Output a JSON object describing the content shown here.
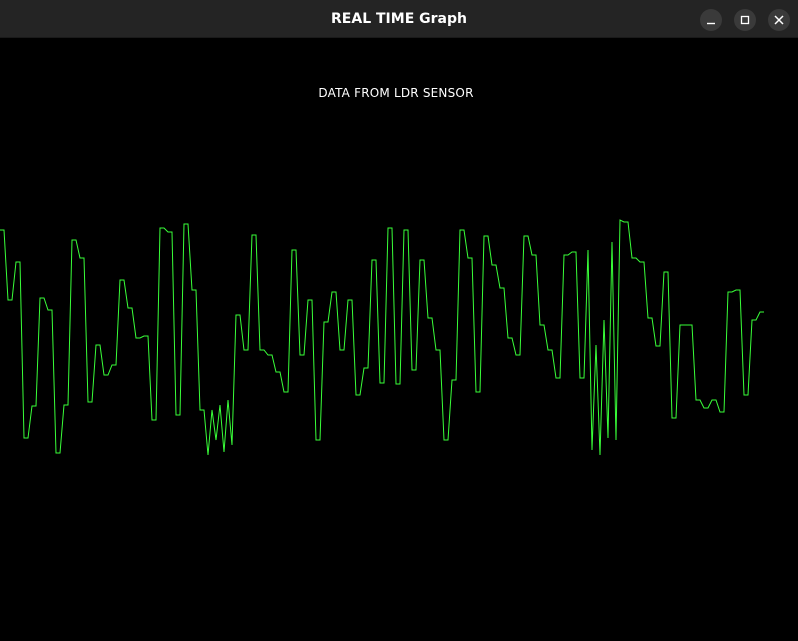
{
  "window": {
    "title": "REAL TIME Graph",
    "buttons": {
      "minimize_icon": "minimize-icon",
      "maximize_icon": "maximize-icon",
      "close_icon": "close-icon"
    }
  },
  "canvas": {
    "label": "DATA FROM LDR SENSOR",
    "background": "#000000",
    "trace_color": "#39ff39"
  },
  "chart_data": {
    "type": "line",
    "grid": false,
    "series": [
      {
        "values": [
          230,
          230,
          300,
          300,
          262,
          262,
          438,
          438,
          406,
          406,
          298,
          298,
          310,
          310,
          453,
          453,
          405,
          405,
          240,
          240,
          258,
          258,
          402,
          402,
          345,
          345,
          375,
          375,
          365,
          365,
          280,
          280,
          308,
          308,
          338,
          338,
          336,
          336,
          420,
          420,
          228,
          228,
          232,
          232,
          415,
          415,
          224,
          224,
          290,
          290,
          410,
          410,
          455,
          410,
          440,
          405,
          452,
          400,
          445,
          315,
          315,
          350,
          350,
          235,
          235,
          350,
          350,
          355,
          355,
          372,
          372,
          392,
          392,
          250,
          250,
          355,
          355,
          300,
          300,
          440,
          440,
          322,
          322,
          292,
          292,
          350,
          350,
          300,
          300,
          395,
          395,
          368,
          368,
          260,
          260,
          383,
          383,
          228,
          228,
          384,
          384,
          230,
          230,
          370,
          370,
          260,
          260,
          318,
          318,
          350,
          350,
          440,
          440,
          380,
          380,
          230,
          230,
          258,
          258,
          392,
          392,
          236,
          236,
          265,
          265,
          288,
          288,
          338,
          338,
          355,
          355,
          236,
          236,
          255,
          255,
          325,
          325,
          350,
          350,
          378,
          378,
          255,
          255,
          252,
          252,
          378,
          378,
          250,
          450,
          345,
          455,
          320,
          438,
          242,
          440,
          220,
          222,
          222,
          258,
          258,
          262,
          262,
          318,
          318,
          346,
          346,
          272,
          272,
          418,
          418,
          325,
          325,
          325,
          325,
          400,
          400,
          408,
          408,
          400,
          400,
          412,
          412,
          292,
          292,
          290,
          290,
          395,
          395,
          320,
          320,
          312,
          312
        ],
        "x_step": 4
      }
    ]
  }
}
